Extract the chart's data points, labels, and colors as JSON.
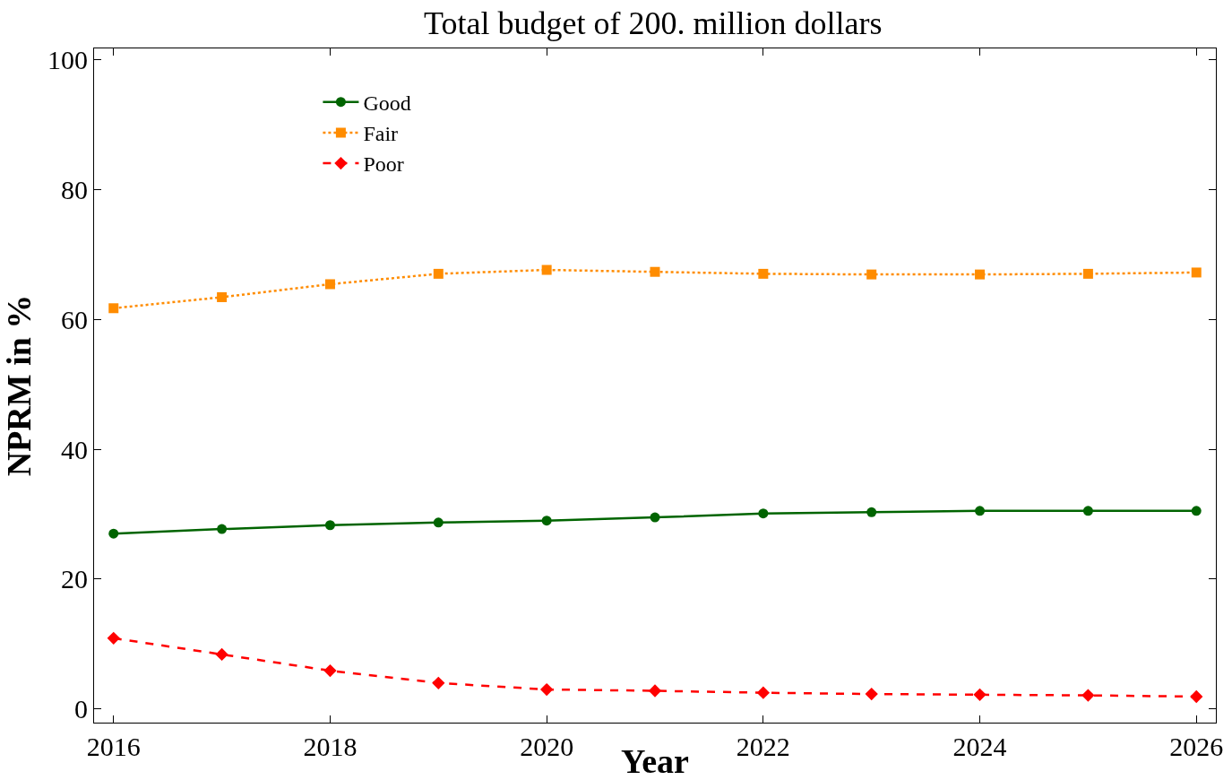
{
  "chart_data": {
    "type": "line",
    "title": "Total budget of 200. million dollars",
    "xlabel": "Year",
    "ylabel": "NPRM in %",
    "x": [
      2016,
      2017,
      2018,
      2019,
      2020,
      2021,
      2022,
      2023,
      2024,
      2025,
      2026
    ],
    "series": [
      {
        "name": "Good",
        "color": "#006400",
        "marker": "circle",
        "line_style": "solid",
        "values": [
          27.0,
          27.7,
          28.3,
          28.7,
          29.0,
          29.5,
          30.1,
          30.3,
          30.5,
          30.5,
          30.5
        ]
      },
      {
        "name": "Fair",
        "color": "#ff8c00",
        "marker": "square",
        "line_style": "dotted",
        "values": [
          61.7,
          63.4,
          65.4,
          67.0,
          67.6,
          67.3,
          67.0,
          66.9,
          66.9,
          67.0,
          67.2
        ]
      },
      {
        "name": "Poor",
        "color": "#ff0000",
        "marker": "diamond",
        "line_style": "dashed",
        "values": [
          10.9,
          8.4,
          5.9,
          4.0,
          3.0,
          2.8,
          2.5,
          2.3,
          2.2,
          2.1,
          1.9
        ]
      }
    ],
    "xlim": [
      2015.82,
      2026.18
    ],
    "xticks": [
      2016,
      2018,
      2020,
      2022,
      2024,
      2026
    ],
    "ylim": [
      -2.1,
      101.7
    ],
    "yticks": [
      0,
      20,
      40,
      60,
      80,
      100
    ],
    "grid": false,
    "legend": "top left"
  }
}
